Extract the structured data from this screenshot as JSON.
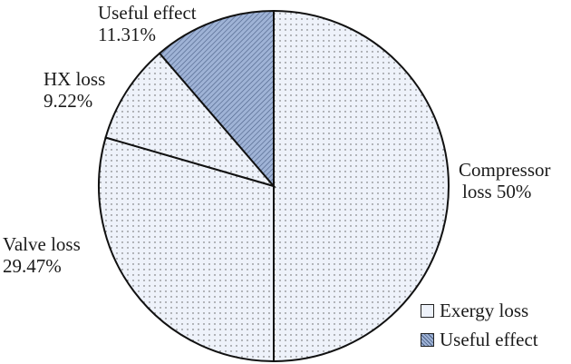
{
  "chart_data": {
    "type": "pie",
    "title": "",
    "slices": [
      {
        "label": "Compressor loss",
        "value": 50.0,
        "display": "Compressor loss 50%",
        "category": "Exergy loss"
      },
      {
        "label": "Valve loss",
        "value": 29.47,
        "display": "Valve loss 29.47%",
        "category": "Exergy loss"
      },
      {
        "label": "HX loss",
        "value": 9.22,
        "display": "HX loss 9.22%",
        "category": "Exergy loss"
      },
      {
        "label": "Useful effect",
        "value": 11.31,
        "display": "Useful effect 11.31%",
        "category": "Useful effect"
      }
    ],
    "legend": [
      {
        "label": "Exergy loss",
        "pattern": "dots",
        "color": "#eef2fa"
      },
      {
        "label": "Useful effect",
        "pattern": "diagonal-hatch",
        "color": "#9fb3d6"
      }
    ],
    "legend_position": "bottom-right"
  },
  "labels": {
    "useful_name": "Useful effect",
    "useful_pct": "11.31%",
    "hx_name": "HX loss",
    "hx_pct": "9.22%",
    "valve_name": "Valve loss",
    "valve_pct": "29.47%",
    "comp_name": "Compressor",
    "comp_pct": "loss 50%"
  }
}
